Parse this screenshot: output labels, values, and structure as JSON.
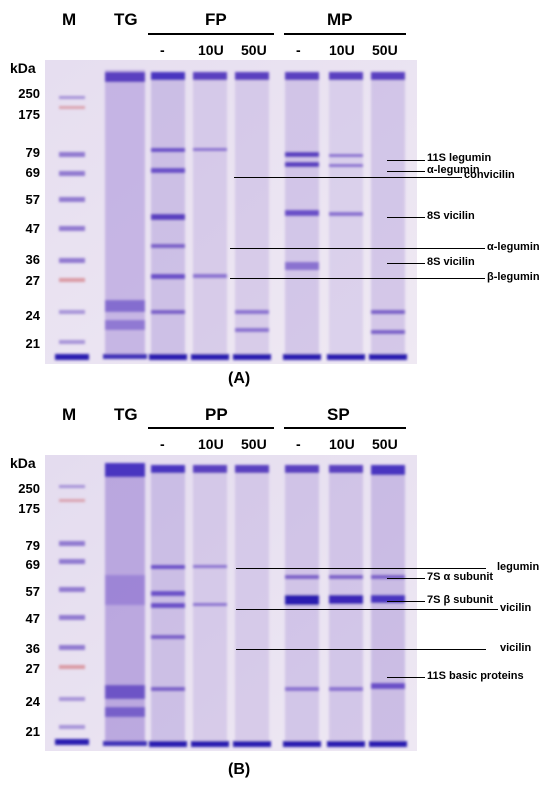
{
  "colors": {
    "gel_background": "#e9e3f0",
    "band": "#6a50c8",
    "dark_band": "#2b1fb0",
    "marker_band": "#d3686e"
  },
  "panel_a": {
    "label": "(A)",
    "lane_headers": {
      "m": "M",
      "tg": "TG",
      "group1": "FP",
      "group2": "MP"
    },
    "sub_headers": [
      "-",
      "10U",
      "50U",
      "-",
      "10U",
      "50U"
    ],
    "kda_label": "kDa",
    "mw_markers": [
      "250",
      "175",
      "79",
      "69",
      "57",
      "47",
      "36",
      "27",
      "24",
      "21"
    ],
    "annotations": [
      "11S legumin",
      "α-legumin",
      "convicilin",
      "8S vicilin",
      "α-legumin",
      "8S vicilin",
      "β-legumin"
    ]
  },
  "panel_b": {
    "label": "(B)",
    "lane_headers": {
      "m": "M",
      "tg": "TG",
      "group1": "PP",
      "group2": "SP"
    },
    "sub_headers": [
      "-",
      "10U",
      "50U",
      "-",
      "10U",
      "50U"
    ],
    "kda_label": "kDa",
    "mw_markers": [
      "250",
      "175",
      "79",
      "69",
      "57",
      "47",
      "36",
      "27",
      "24",
      "21"
    ],
    "annotations": [
      "legumin",
      "7S α subunit",
      "7S β subunit",
      "vicilin",
      "vicilin",
      "11S basic proteins"
    ]
  }
}
